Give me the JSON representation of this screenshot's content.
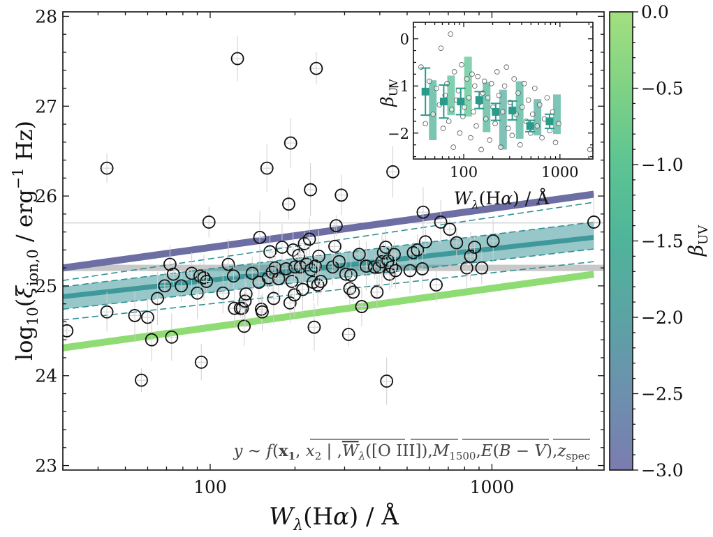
{
  "chart_data": [
    {
      "type": "scatter",
      "role": "main",
      "xlabel": "W_λ(Hα) / Å",
      "ylabel": "log10(ξ_ion,0 / erg^-1 Hz)",
      "xscale": "log",
      "xlim": [
        30,
        2500
      ],
      "ylim": [
        22.95,
        28.05
      ],
      "x_ticks": [
        {
          "value": 100,
          "label": "100"
        },
        {
          "value": 1000,
          "label": "1000"
        }
      ],
      "y_ticks": [
        {
          "value": 23,
          "label": "23"
        },
        {
          "value": 24,
          "label": "24"
        },
        {
          "value": 25,
          "label": "25"
        },
        {
          "value": 26,
          "label": "26"
        },
        {
          "value": 27,
          "label": "27"
        },
        {
          "value": 28,
          "label": "28"
        }
      ],
      "annotation": "y ~ f(x1, x2 | , W_λ([O III]), M_1500, E(B−V), z_spec)",
      "reference_lines": {
        "canonical_y": 25.2,
        "thin_y": 25.7
      },
      "model_lines": [
        {
          "beta_uv": -3.0,
          "color": "#6c6ea4",
          "x": [
            30,
            2300
          ],
          "y": [
            25.2,
            26.02
          ]
        },
        {
          "beta_uv": 0.0,
          "color": "#90dc74",
          "x": [
            30,
            2300
          ],
          "y": [
            24.31,
            25.13
          ]
        }
      ],
      "fit": {
        "color": "#2f8f92",
        "x": [
          30,
          2300
        ],
        "median": [
          24.88,
          25.54
        ],
        "band_lower": [
          24.74,
          25.41
        ],
        "band_upper": [
          24.99,
          25.71
        ],
        "outer_lower": [
          24.62,
          25.27
        ],
        "outer_upper": [
          25.06,
          25.93
        ]
      },
      "points": [
        {
          "x": 31,
          "y": 24.5
        },
        {
          "x": 43,
          "y": 26.31
        },
        {
          "x": 43,
          "y": 24.71
        },
        {
          "x": 54,
          "y": 24.67
        },
        {
          "x": 57,
          "y": 23.95
        },
        {
          "x": 60,
          "y": 24.65
        },
        {
          "x": 62,
          "y": 24.4
        },
        {
          "x": 65,
          "y": 24.86
        },
        {
          "x": 69,
          "y": 25.0
        },
        {
          "x": 72,
          "y": 25.24
        },
        {
          "x": 73,
          "y": 24.43
        },
        {
          "x": 74,
          "y": 25.13
        },
        {
          "x": 79,
          "y": 25.0
        },
        {
          "x": 86,
          "y": 25.14
        },
        {
          "x": 90,
          "y": 24.92
        },
        {
          "x": 92,
          "y": 25.11
        },
        {
          "x": 93,
          "y": 24.15
        },
        {
          "x": 95,
          "y": 25.09
        },
        {
          "x": 97,
          "y": 25.05
        },
        {
          "x": 99,
          "y": 25.71
        },
        {
          "x": 111,
          "y": 24.92
        },
        {
          "x": 116,
          "y": 25.24
        },
        {
          "x": 121,
          "y": 25.11
        },
        {
          "x": 122,
          "y": 24.75
        },
        {
          "x": 125,
          "y": 27.53
        },
        {
          "x": 128,
          "y": 24.75
        },
        {
          "x": 130,
          "y": 24.75
        },
        {
          "x": 132,
          "y": 24.55
        },
        {
          "x": 133,
          "y": 24.83
        },
        {
          "x": 134,
          "y": 24.91
        },
        {
          "x": 141,
          "y": 25.14
        },
        {
          "x": 149,
          "y": 25.04
        },
        {
          "x": 150,
          "y": 25.54
        },
        {
          "x": 152,
          "y": 24.74
        },
        {
          "x": 153,
          "y": 24.71
        },
        {
          "x": 159,
          "y": 26.31
        },
        {
          "x": 161,
          "y": 25.09
        },
        {
          "x": 163,
          "y": 25.38
        },
        {
          "x": 166,
          "y": 25.15
        },
        {
          "x": 168,
          "y": 24.86
        },
        {
          "x": 170,
          "y": 25.2
        },
        {
          "x": 175,
          "y": 25.08
        },
        {
          "x": 180,
          "y": 25.43
        },
        {
          "x": 186,
          "y": 25.19
        },
        {
          "x": 190,
          "y": 25.91
        },
        {
          "x": 192,
          "y": 24.81
        },
        {
          "x": 193,
          "y": 26.59
        },
        {
          "x": 195,
          "y": 25.05
        },
        {
          "x": 197,
          "y": 25.4
        },
        {
          "x": 199,
          "y": 24.9
        },
        {
          "x": 200,
          "y": 25.21
        },
        {
          "x": 206,
          "y": 25.34
        },
        {
          "x": 209,
          "y": 25.21
        },
        {
          "x": 213,
          "y": 24.96
        },
        {
          "x": 216,
          "y": 25.47
        },
        {
          "x": 220,
          "y": 25.24
        },
        {
          "x": 225,
          "y": 25.52
        },
        {
          "x": 227,
          "y": 26.07
        },
        {
          "x": 228,
          "y": 25.18
        },
        {
          "x": 232,
          "y": 25.04
        },
        {
          "x": 234,
          "y": 24.54
        },
        {
          "x": 236,
          "y": 25.22
        },
        {
          "x": 238,
          "y": 27.42
        },
        {
          "x": 241,
          "y": 25.01
        },
        {
          "x": 243,
          "y": 25.33
        },
        {
          "x": 247,
          "y": 25.05
        },
        {
          "x": 272,
          "y": 25.21
        },
        {
          "x": 277,
          "y": 25.44
        },
        {
          "x": 280,
          "y": 25.67
        },
        {
          "x": 287,
          "y": 25.27
        },
        {
          "x": 292,
          "y": 26.01
        },
        {
          "x": 303,
          "y": 25.13
        },
        {
          "x": 310,
          "y": 24.46
        },
        {
          "x": 313,
          "y": 24.97
        },
        {
          "x": 316,
          "y": 25.12
        },
        {
          "x": 322,
          "y": 24.93
        },
        {
          "x": 338,
          "y": 25.35
        },
        {
          "x": 345,
          "y": 24.77
        },
        {
          "x": 358,
          "y": 25.22
        },
        {
          "x": 383,
          "y": 25.21
        },
        {
          "x": 391,
          "y": 24.93
        },
        {
          "x": 398,
          "y": 25.21
        },
        {
          "x": 407,
          "y": 25.27
        },
        {
          "x": 412,
          "y": 25.37
        },
        {
          "x": 420,
          "y": 25.43
        },
        {
          "x": 423,
          "y": 23.94
        },
        {
          "x": 428,
          "y": 25.28
        },
        {
          "x": 433,
          "y": 25.13
        },
        {
          "x": 441,
          "y": 25.21
        },
        {
          "x": 445,
          "y": 26.27
        },
        {
          "x": 450,
          "y": 25.35
        },
        {
          "x": 455,
          "y": 25.17
        },
        {
          "x": 512,
          "y": 25.17
        },
        {
          "x": 526,
          "y": 25.37
        },
        {
          "x": 544,
          "y": 25.4
        },
        {
          "x": 566,
          "y": 25.19
        },
        {
          "x": 570,
          "y": 25.82
        },
        {
          "x": 581,
          "y": 25.49
        },
        {
          "x": 634,
          "y": 25.01
        },
        {
          "x": 658,
          "y": 25.71
        },
        {
          "x": 708,
          "y": 25.63
        },
        {
          "x": 749,
          "y": 25.48
        },
        {
          "x": 814,
          "y": 25.2
        },
        {
          "x": 840,
          "y": 25.33
        },
        {
          "x": 868,
          "y": 25.43
        },
        {
          "x": 920,
          "y": 25.2
        },
        {
          "x": 1010,
          "y": 25.5
        },
        {
          "x": 2300,
          "y": 25.71
        }
      ]
    },
    {
      "type": "scatter",
      "role": "inset",
      "xlabel": "W_λ(Hα) / Å",
      "ylabel": "β_UV",
      "xscale": "log",
      "xlim": [
        30,
        2200
      ],
      "ylim": [
        -2.55,
        0.35
      ],
      "x_ticks": [
        {
          "value": 100,
          "label": "100"
        },
        {
          "value": 1000,
          "label": "1000"
        }
      ],
      "y_ticks": [
        {
          "value": 0,
          "label": "0"
        },
        {
          "value": -1,
          "label": "−1"
        },
        {
          "value": -2,
          "label": "−2"
        }
      ],
      "bins": [
        {
          "x": 40,
          "mean": -1.12,
          "err": 0.5,
          "low": -2.15,
          "high": -0.88
        },
        {
          "x": 62,
          "mean": -1.33,
          "err": 0.35,
          "low": -1.62,
          "high": -0.78
        },
        {
          "x": 93,
          "mean": -1.33,
          "err": 0.28,
          "low": -1.65,
          "high": -0.38
        },
        {
          "x": 145,
          "mean": -1.3,
          "err": 0.18,
          "low": -1.98,
          "high": -0.92
        },
        {
          "x": 215,
          "mean": -1.55,
          "err": 0.18,
          "low": -2.35,
          "high": -1.08
        },
        {
          "x": 320,
          "mean": -1.52,
          "err": 0.2,
          "low": -2.12,
          "high": -0.9
        },
        {
          "x": 490,
          "mean": -1.85,
          "err": 0.12,
          "low": -2.05,
          "high": -1.28
        },
        {
          "x": 780,
          "mean": -1.75,
          "err": 0.15,
          "low": -2.02,
          "high": -1.18
        }
      ],
      "points": [
        {
          "x": 36,
          "y": -0.6
        },
        {
          "x": 40,
          "y": -1.8
        },
        {
          "x": 44,
          "y": -0.9
        },
        {
          "x": 48,
          "y": -1.6
        },
        {
          "x": 52,
          "y": -1.05
        },
        {
          "x": 56,
          "y": -1.4
        },
        {
          "x": 58,
          "y": -0.2
        },
        {
          "x": 61,
          "y": -1.9
        },
        {
          "x": 64,
          "y": -1.2
        },
        {
          "x": 67,
          "y": -0.95
        },
        {
          "x": 70,
          "y": -1.75
        },
        {
          "x": 73,
          "y": 0.1
        },
        {
          "x": 75,
          "y": -1.5
        },
        {
          "x": 78,
          "y": -2.3
        },
        {
          "x": 80,
          "y": -0.7
        },
        {
          "x": 84,
          "y": -1.3
        },
        {
          "x": 88,
          "y": -1.1
        },
        {
          "x": 91,
          "y": -2.0
        },
        {
          "x": 95,
          "y": -0.55
        },
        {
          "x": 98,
          "y": -1.65
        },
        {
          "x": 102,
          "y": -1.45
        },
        {
          "x": 108,
          "y": -0.85
        },
        {
          "x": 113,
          "y": -1.25
        },
        {
          "x": 118,
          "y": -2.1
        },
        {
          "x": 122,
          "y": -0.75
        },
        {
          "x": 126,
          "y": -1.55
        },
        {
          "x": 130,
          "y": -1.0
        },
        {
          "x": 135,
          "y": -1.85
        },
        {
          "x": 140,
          "y": -0.8
        },
        {
          "x": 146,
          "y": -1.35
        },
        {
          "x": 152,
          "y": -2.35
        },
        {
          "x": 158,
          "y": -1.15
        },
        {
          "x": 164,
          "y": -0.9
        },
        {
          "x": 170,
          "y": -1.7
        },
        {
          "x": 178,
          "y": -1.25
        },
        {
          "x": 186,
          "y": -2.15
        },
        {
          "x": 194,
          "y": -0.95
        },
        {
          "x": 202,
          "y": -1.45
        },
        {
          "x": 212,
          "y": -1.8
        },
        {
          "x": 222,
          "y": -0.7
        },
        {
          "x": 232,
          "y": -1.2
        },
        {
          "x": 242,
          "y": -2.3
        },
        {
          "x": 254,
          "y": -1.55
        },
        {
          "x": 266,
          "y": -1.0
        },
        {
          "x": 278,
          "y": -0.6
        },
        {
          "x": 290,
          "y": -1.9
        },
        {
          "x": 304,
          "y": -1.35
        },
        {
          "x": 318,
          "y": -2.05
        },
        {
          "x": 334,
          "y": -0.85
        },
        {
          "x": 350,
          "y": -1.6
        },
        {
          "x": 368,
          "y": -1.15
        },
        {
          "x": 386,
          "y": -2.25
        },
        {
          "x": 405,
          "y": -1.45
        },
        {
          "x": 425,
          "y": -0.95
        },
        {
          "x": 446,
          "y": -1.75
        },
        {
          "x": 470,
          "y": -1.3
        },
        {
          "x": 495,
          "y": -2.0
        },
        {
          "x": 520,
          "y": -1.6
        },
        {
          "x": 548,
          "y": -1.05
        },
        {
          "x": 580,
          "y": -1.85
        },
        {
          "x": 615,
          "y": -1.4
        },
        {
          "x": 650,
          "y": -2.1
        },
        {
          "x": 690,
          "y": -1.7
        },
        {
          "x": 735,
          "y": -1.25
        },
        {
          "x": 785,
          "y": -1.95
        },
        {
          "x": 840,
          "y": -1.55
        },
        {
          "x": 900,
          "y": -2.2
        },
        {
          "x": 970,
          "y": -1.8
        },
        {
          "x": 2050,
          "y": -2.35
        }
      ]
    }
  ],
  "colorbar": {
    "label": "β_UV",
    "range": [
      -3.0,
      0.0
    ],
    "ticks": [
      {
        "value": 0.0,
        "label": "0.0"
      },
      {
        "value": -0.5,
        "label": "−0.5"
      },
      {
        "value": -1.0,
        "label": "−1.0"
      },
      {
        "value": -1.5,
        "label": "−1.5"
      },
      {
        "value": -2.0,
        "label": "−2.0"
      },
      {
        "value": -2.5,
        "label": "−2.5"
      },
      {
        "value": -3.0,
        "label": "−3.0"
      }
    ],
    "colors": [
      "#7b7caf",
      "#6c90ae",
      "#5ca3a4",
      "#4fb49a",
      "#5cc493",
      "#7fd285",
      "#a3df7f"
    ]
  }
}
